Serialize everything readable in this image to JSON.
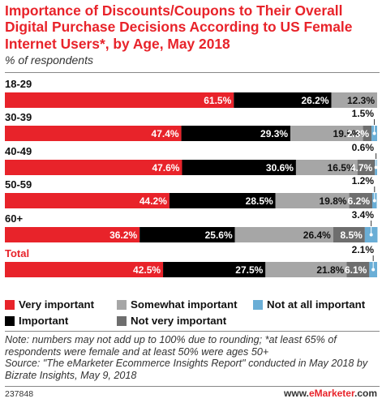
{
  "header": {
    "title": "Importance of Discounts/Coupons to Their Overall Digital Purchase Decisions According to US Female Internet Users*, by Age, May 2018",
    "subtitle": "% of respondents"
  },
  "colors": {
    "very_important": "#e8232a",
    "important": "#000000",
    "somewhat_important": "#a6a6a6",
    "not_very_important": "#6e6e6e",
    "not_at_all_important": "#6aaed6",
    "total_label": "#e8232a"
  },
  "chart_data": {
    "type": "bar",
    "orientation": "horizontal",
    "stacked": true,
    "xlim": [
      0,
      100
    ],
    "categories": [
      "18-29",
      "30-39",
      "40-49",
      "50-59",
      "60+",
      "Total"
    ],
    "series": [
      {
        "name": "Very important",
        "values": [
          61.5,
          47.4,
          47.6,
          44.2,
          36.2,
          42.5
        ],
        "labels": [
          "61.5%",
          "47.4%",
          "47.6%",
          "44.2%",
          "36.2%",
          "42.5%"
        ]
      },
      {
        "name": "Important",
        "values": [
          26.2,
          29.3,
          30.6,
          28.5,
          25.6,
          27.5
        ],
        "labels": [
          "26.2%",
          "29.3%",
          "30.6%",
          "28.5%",
          "25.6%",
          "27.5%"
        ]
      },
      {
        "name": "Somewhat important",
        "values": [
          12.3,
          19.5,
          16.5,
          19.8,
          26.4,
          21.8
        ],
        "labels": [
          "12.3%",
          "19.5%",
          "16.5%",
          "19.8%",
          "26.4%",
          "21.8%"
        ]
      },
      {
        "name": "Not very important",
        "values": [
          0,
          2.3,
          4.7,
          6.2,
          8.5,
          6.1
        ],
        "labels": [
          "",
          "2.3%",
          "4.7%",
          "6.2%",
          "8.5%",
          "6.1%"
        ]
      },
      {
        "name": "Not at all important",
        "values": [
          0,
          1.5,
          0.6,
          1.2,
          3.4,
          2.1
        ],
        "labels": [
          "",
          "1.5%",
          "0.6%",
          "1.2%",
          "3.4%",
          "2.1%"
        ]
      }
    ],
    "legend": [
      "Very important",
      "Somewhat important",
      "Not at all important",
      "Important",
      "Not very important"
    ],
    "legend_position": "bottom"
  },
  "legend_labels": {
    "very_important": "Very important",
    "somewhat_important": "Somewhat important",
    "not_at_all_important": "Not at all important",
    "important": "Important",
    "not_very_important": "Not very important"
  },
  "note": "Note: numbers may not add up to 100% due to rounding; *at least 65% of respondents were female and at least 50% were ages 50+\nSource: \"The eMarketer Ecommerce Insights Report\" conducted in May 2018 by Bizrate Insights, May 9, 2018",
  "footer": {
    "id": "237848",
    "logo_prefix": "www.",
    "logo_brand": "eMarketer",
    "logo_suffix": ".com"
  }
}
